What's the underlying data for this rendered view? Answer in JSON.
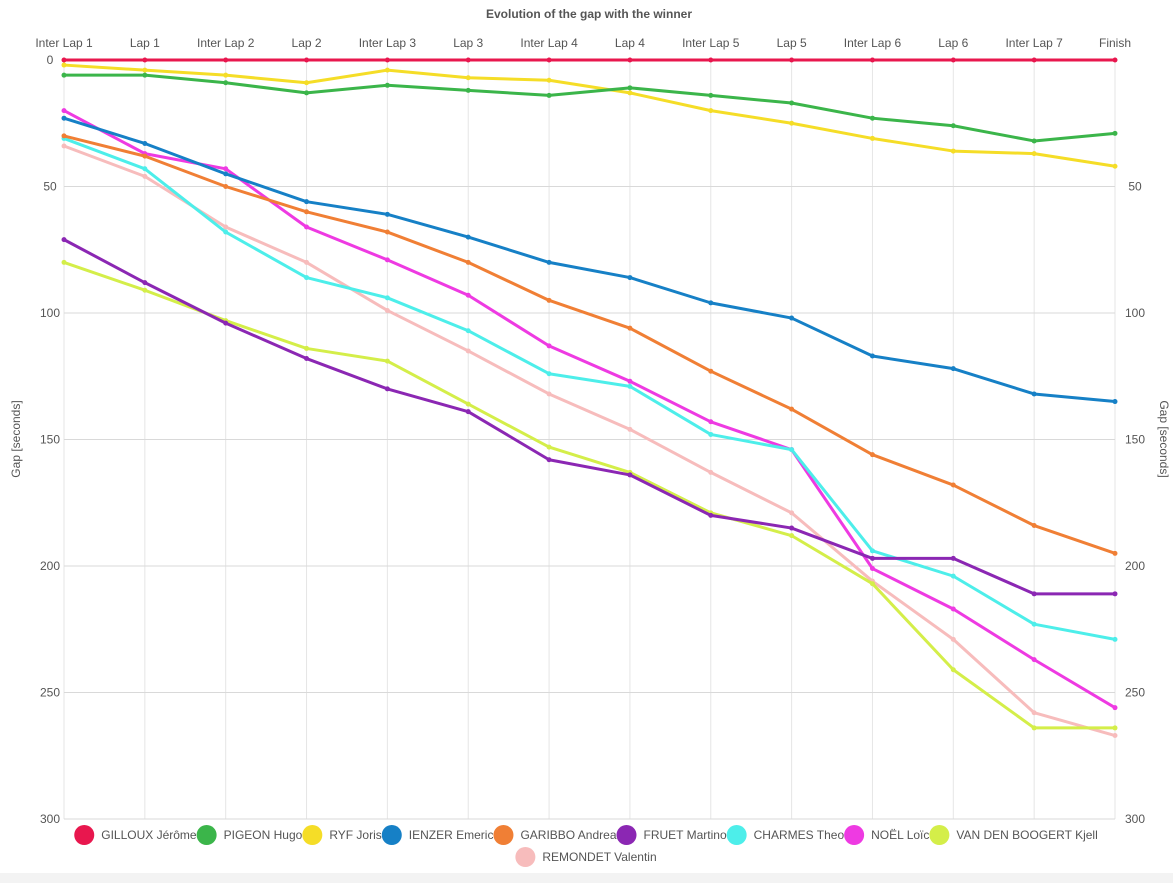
{
  "chart_data": {
    "type": "line",
    "title": "Evolution of the gap with the winner",
    "ylabel": "Gap [seconds]",
    "ylabel_right": "Gap [seconds]",
    "ylim": [
      0,
      300
    ],
    "y_reversed": true,
    "y_ticks": [
      0,
      50,
      100,
      150,
      200,
      250,
      300
    ],
    "y_ticks_right": [
      50,
      100,
      150,
      200,
      250,
      300
    ],
    "grid": true,
    "legend_position": "bottom",
    "categories": [
      "Inter Lap 1",
      "Lap 1",
      "Inter Lap 2",
      "Lap 2",
      "Inter Lap 3",
      "Lap 3",
      "Inter Lap 4",
      "Lap 4",
      "Inter Lap 5",
      "Lap 5",
      "Inter Lap 6",
      "Lap 6",
      "Inter Lap 7",
      "Finish"
    ],
    "series": [
      {
        "name": "GILLOUX Jérôme",
        "color": "#e8174e",
        "values": [
          0,
          0,
          0,
          0,
          0,
          0,
          0,
          0,
          0,
          0,
          0,
          0,
          0,
          0
        ]
      },
      {
        "name": "PIGEON Hugo",
        "color": "#3bb54a",
        "values": [
          6,
          6,
          9,
          13,
          10,
          12,
          14,
          11,
          14,
          17,
          23,
          26,
          32,
          29
        ]
      },
      {
        "name": "RYF Joris",
        "color": "#f5dd27",
        "values": [
          2,
          4,
          6,
          9,
          4,
          7,
          8,
          13,
          20,
          25,
          31,
          36,
          37,
          42
        ]
      },
      {
        "name": "IENZER Emeric",
        "color": "#1680c6",
        "values": [
          23,
          33,
          45,
          56,
          61,
          70,
          80,
          86,
          96,
          102,
          117,
          122,
          132,
          135
        ]
      },
      {
        "name": "GARIBBO Andrea",
        "color": "#f07f35",
        "values": [
          30,
          38,
          50,
          60,
          68,
          80,
          95,
          106,
          123,
          138,
          156,
          168,
          184,
          195
        ]
      },
      {
        "name": "FRUET Martino",
        "color": "#8b27b3",
        "values": [
          71,
          88,
          104,
          118,
          130,
          139,
          158,
          164,
          180,
          185,
          197,
          197,
          211,
          211
        ]
      },
      {
        "name": "CHARMES Theo",
        "color": "#4deeea",
        "values": [
          31,
          43,
          68,
          86,
          94,
          107,
          124,
          129,
          148,
          154,
          194,
          204,
          223,
          229
        ]
      },
      {
        "name": "NOËL Loïc",
        "color": "#ee3ae2",
        "values": [
          20,
          37,
          43,
          66,
          79,
          93,
          113,
          127,
          143,
          154,
          201,
          217,
          237,
          256
        ]
      },
      {
        "name": "VAN DEN BOOGERT Kjell",
        "color": "#d4ee49",
        "values": [
          80,
          91,
          103,
          114,
          119,
          136,
          153,
          163,
          179,
          188,
          207,
          241,
          264,
          264
        ]
      },
      {
        "name": "REMONDET Valentin",
        "color": "#f7bcbc",
        "values": [
          34,
          46,
          66,
          80,
          99,
          115,
          132,
          146,
          163,
          179,
          206,
          229,
          258,
          267
        ]
      }
    ]
  }
}
